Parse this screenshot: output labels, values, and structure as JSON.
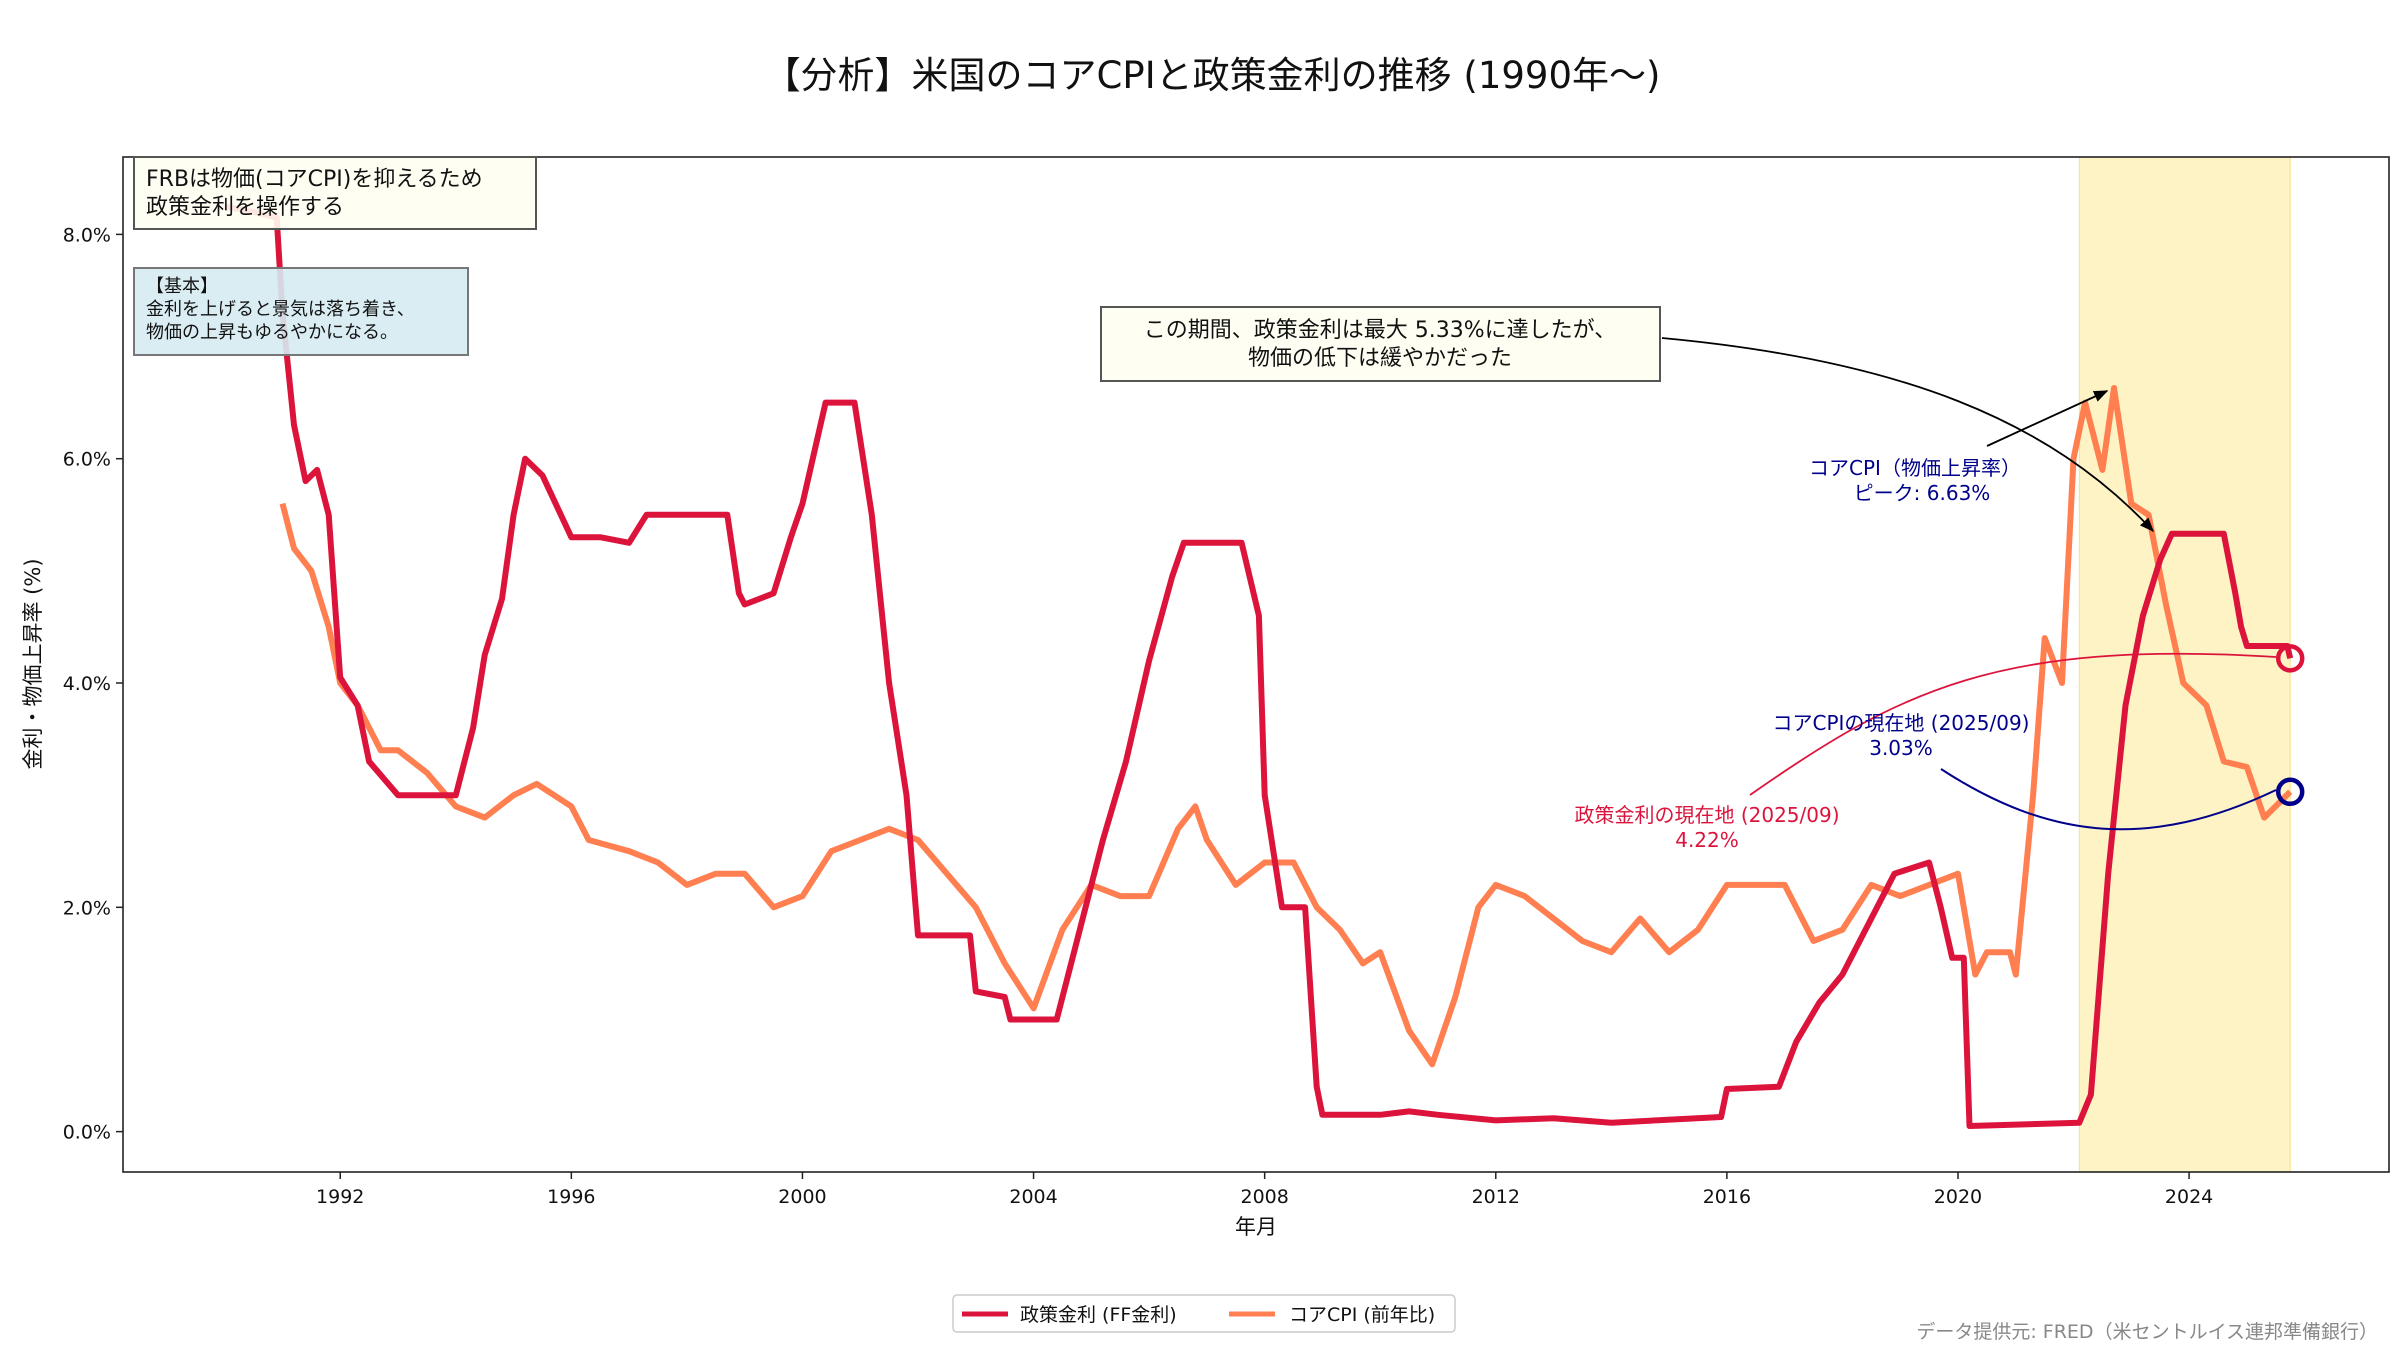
{
  "chart_data": {
    "type": "line",
    "title": "【分析】米国のコアCPIと政策金利の推移 (1990年〜)",
    "xlabel": "年月",
    "ylabel": "金利・物価上昇率 (%)",
    "xlim": [
      1988.24,
      2027.46
    ],
    "ylim": [
      -0.36,
      8.69
    ],
    "xticks": [
      "1992",
      "1996",
      "2000",
      "2004",
      "2008",
      "2012",
      "2016",
      "2020",
      "2024"
    ],
    "yticks": [
      "0.0%",
      "2.0%",
      "4.0%",
      "6.0%",
      "8.0%"
    ],
    "grid": false,
    "legend_placement": "bottom-center",
    "highlight_range": [
      2022.1,
      2025.75
    ],
    "highlight_color": "#fdf3c4",
    "series": [
      {
        "name": "政策金利 (FF金利)",
        "color": "#dc143c",
        "points": [
          [
            1990.0,
            8.25
          ],
          [
            1990.5,
            8.2
          ],
          [
            1990.9,
            8.15
          ],
          [
            1991.0,
            7.3
          ],
          [
            1991.2,
            6.3
          ],
          [
            1991.4,
            5.8
          ],
          [
            1991.6,
            5.9
          ],
          [
            1991.8,
            5.5
          ],
          [
            1992.0,
            4.05
          ],
          [
            1992.3,
            3.8
          ],
          [
            1992.5,
            3.3
          ],
          [
            1993.0,
            3.0
          ],
          [
            1994.0,
            3.0
          ],
          [
            1994.3,
            3.6
          ],
          [
            1994.5,
            4.25
          ],
          [
            1994.8,
            4.75
          ],
          [
            1995.0,
            5.5
          ],
          [
            1995.2,
            6.0
          ],
          [
            1995.5,
            5.85
          ],
          [
            1996.0,
            5.3
          ],
          [
            1996.5,
            5.3
          ],
          [
            1997.0,
            5.25
          ],
          [
            1997.3,
            5.5
          ],
          [
            1998.0,
            5.5
          ],
          [
            1998.7,
            5.5
          ],
          [
            1998.9,
            4.8
          ],
          [
            1999.0,
            4.7
          ],
          [
            1999.5,
            4.8
          ],
          [
            1999.8,
            5.3
          ],
          [
            2000.0,
            5.6
          ],
          [
            2000.4,
            6.5
          ],
          [
            2000.9,
            6.5
          ],
          [
            2001.2,
            5.5
          ],
          [
            2001.5,
            4.0
          ],
          [
            2001.8,
            3.0
          ],
          [
            2002.0,
            1.75
          ],
          [
            2002.9,
            1.75
          ],
          [
            2003.0,
            1.25
          ],
          [
            2003.5,
            1.2
          ],
          [
            2003.6,
            1.0
          ],
          [
            2004.4,
            1.0
          ],
          [
            2004.8,
            1.8
          ],
          [
            2005.2,
            2.6
          ],
          [
            2005.6,
            3.3
          ],
          [
            2006.0,
            4.2
          ],
          [
            2006.4,
            4.95
          ],
          [
            2006.6,
            5.25
          ],
          [
            2007.6,
            5.25
          ],
          [
            2007.9,
            4.6
          ],
          [
            2008.0,
            3.0
          ],
          [
            2008.3,
            2.0
          ],
          [
            2008.7,
            2.0
          ],
          [
            2008.9,
            0.4
          ],
          [
            2009.0,
            0.15
          ],
          [
            2010.0,
            0.15
          ],
          [
            2010.5,
            0.18
          ],
          [
            2011.0,
            0.15
          ],
          [
            2012.0,
            0.1
          ],
          [
            2013.0,
            0.12
          ],
          [
            2014.0,
            0.08
          ],
          [
            2015.9,
            0.13
          ],
          [
            2016.0,
            0.38
          ],
          [
            2016.9,
            0.4
          ],
          [
            2017.2,
            0.8
          ],
          [
            2017.6,
            1.15
          ],
          [
            2018.0,
            1.4
          ],
          [
            2018.5,
            1.9
          ],
          [
            2018.9,
            2.3
          ],
          [
            2019.5,
            2.4
          ],
          [
            2019.7,
            2.0
          ],
          [
            2019.9,
            1.55
          ],
          [
            2020.1,
            1.55
          ],
          [
            2020.2,
            0.05
          ],
          [
            2022.1,
            0.08
          ],
          [
            2022.3,
            0.33
          ],
          [
            2022.6,
            2.3
          ],
          [
            2022.9,
            3.8
          ],
          [
            2023.2,
            4.6
          ],
          [
            2023.5,
            5.1
          ],
          [
            2023.7,
            5.33
          ],
          [
            2024.6,
            5.33
          ],
          [
            2024.8,
            4.8
          ],
          [
            2024.9,
            4.5
          ],
          [
            2025.0,
            4.33
          ],
          [
            2025.7,
            4.33
          ],
          [
            2025.75,
            4.22
          ]
        ]
      },
      {
        "name": "コアCPI (前年比)",
        "color": "#ff7f50",
        "points": [
          [
            1991.0,
            5.6
          ],
          [
            1991.2,
            5.2
          ],
          [
            1991.5,
            5.0
          ],
          [
            1991.8,
            4.5
          ],
          [
            1992.0,
            4.0
          ],
          [
            1992.3,
            3.8
          ],
          [
            1992.7,
            3.4
          ],
          [
            1993.0,
            3.4
          ],
          [
            1993.5,
            3.2
          ],
          [
            1994.0,
            2.9
          ],
          [
            1994.5,
            2.8
          ],
          [
            1995.0,
            3.0
          ],
          [
            1995.4,
            3.1
          ],
          [
            1996.0,
            2.9
          ],
          [
            1996.3,
            2.6
          ],
          [
            1997.0,
            2.5
          ],
          [
            1997.5,
            2.4
          ],
          [
            1998.0,
            2.2
          ],
          [
            1998.5,
            2.3
          ],
          [
            1999.0,
            2.3
          ],
          [
            1999.5,
            2.0
          ],
          [
            2000.0,
            2.1
          ],
          [
            2000.5,
            2.5
          ],
          [
            2001.0,
            2.6
          ],
          [
            2001.5,
            2.7
          ],
          [
            2002.0,
            2.6
          ],
          [
            2002.5,
            2.3
          ],
          [
            2003.0,
            2.0
          ],
          [
            2003.5,
            1.5
          ],
          [
            2004.0,
            1.1
          ],
          [
            2004.5,
            1.8
          ],
          [
            2005.0,
            2.2
          ],
          [
            2005.5,
            2.1
          ],
          [
            2006.0,
            2.1
          ],
          [
            2006.5,
            2.7
          ],
          [
            2006.8,
            2.9
          ],
          [
            2007.0,
            2.6
          ],
          [
            2007.5,
            2.2
          ],
          [
            2008.0,
            2.4
          ],
          [
            2008.5,
            2.4
          ],
          [
            2008.9,
            2.0
          ],
          [
            2009.3,
            1.8
          ],
          [
            2009.7,
            1.5
          ],
          [
            2010.0,
            1.6
          ],
          [
            2010.5,
            0.9
          ],
          [
            2010.9,
            0.6
          ],
          [
            2011.3,
            1.2
          ],
          [
            2011.7,
            2.0
          ],
          [
            2012.0,
            2.2
          ],
          [
            2012.5,
            2.1
          ],
          [
            2013.0,
            1.9
          ],
          [
            2013.5,
            1.7
          ],
          [
            2014.0,
            1.6
          ],
          [
            2014.5,
            1.9
          ],
          [
            2015.0,
            1.6
          ],
          [
            2015.5,
            1.8
          ],
          [
            2016.0,
            2.2
          ],
          [
            2016.5,
            2.2
          ],
          [
            2017.0,
            2.2
          ],
          [
            2017.5,
            1.7
          ],
          [
            2018.0,
            1.8
          ],
          [
            2018.5,
            2.2
          ],
          [
            2019.0,
            2.1
          ],
          [
            2019.5,
            2.2
          ],
          [
            2020.0,
            2.3
          ],
          [
            2020.3,
            1.4
          ],
          [
            2020.5,
            1.6
          ],
          [
            2020.9,
            1.6
          ],
          [
            2021.0,
            1.4
          ],
          [
            2021.3,
            3.0
          ],
          [
            2021.5,
            4.4
          ],
          [
            2021.8,
            4.0
          ],
          [
            2022.0,
            6.0
          ],
          [
            2022.2,
            6.5
          ],
          [
            2022.5,
            5.9
          ],
          [
            2022.7,
            6.63
          ],
          [
            2023.0,
            5.6
          ],
          [
            2023.3,
            5.5
          ],
          [
            2023.6,
            4.7
          ],
          [
            2023.9,
            4.0
          ],
          [
            2024.3,
            3.8
          ],
          [
            2024.6,
            3.3
          ],
          [
            2025.0,
            3.25
          ],
          [
            2025.3,
            2.8
          ],
          [
            2025.75,
            3.03
          ]
        ]
      }
    ],
    "annotations": {
      "frb_box": [
        "FRBは物価(コアCPI)を抑えるため",
        "政策金利を操作する"
      ],
      "basic_box": [
        "【基本】",
        "金利を上げると景気は落ち着き、",
        "物価の上昇もゆるやかになる。"
      ],
      "period_box": [
        "この期間、政策金利は最大 5.33%に達したが、",
        "物価の低下は緩やかだった"
      ],
      "cpi_peak": [
        "コアCPI（物価上昇率）",
        "ピーク: 6.63%"
      ],
      "cpi_now": [
        "コアCPIの現在地 (2025/09)",
        "3.03%"
      ],
      "rate_now": [
        "政策金利の現在地 (2025/09)",
        "4.22%"
      ],
      "blue_color": "#00008b",
      "red_color": "#dc143c"
    },
    "source": "データ提供元: FRED（米セントルイス連邦準備銀行）"
  }
}
